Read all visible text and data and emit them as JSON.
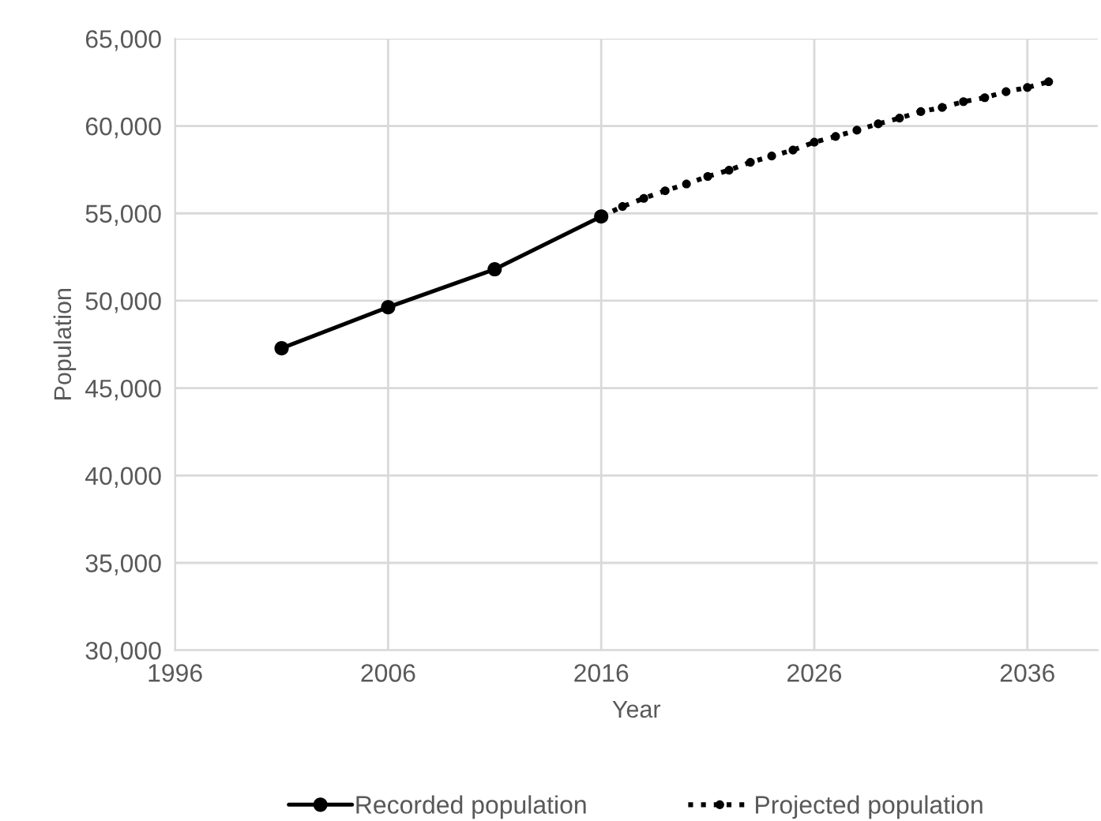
{
  "chart_data": {
    "type": "line",
    "xlabel": "Year",
    "ylabel": "Population",
    "xlim": [
      1996,
      2039.3
    ],
    "xticks": [
      1996,
      2006,
      2016,
      2026,
      2036
    ],
    "ylim": [
      30000,
      65000
    ],
    "yticks": [
      {
        "value": 30000,
        "label": "30,000"
      },
      {
        "value": 35000,
        "label": "35,000"
      },
      {
        "value": 40000,
        "label": "40,000"
      },
      {
        "value": 45000,
        "label": "45,000"
      },
      {
        "value": 50000,
        "label": "50,000"
      },
      {
        "value": 55000,
        "label": "55,000"
      },
      {
        "value": 60000,
        "label": "60,000"
      },
      {
        "value": 65000,
        "label": "65,000"
      }
    ],
    "grid": true,
    "legend": "bottom",
    "marker": "circle",
    "series": [
      {
        "name": "Recorded population",
        "color": "#000000",
        "line_style": "solid",
        "x": [
          2001,
          2006,
          2011,
          2016
        ],
        "values": [
          47280,
          49630,
          51800,
          54820
        ]
      },
      {
        "name": "Projected population",
        "color": "#000000",
        "line_style": "dotted",
        "x": [
          2016,
          2017,
          2018,
          2019,
          2020,
          2021,
          2022,
          2023,
          2024,
          2025,
          2026,
          2027,
          2028,
          2029,
          2030,
          2031,
          2032,
          2033,
          2034,
          2035,
          2036,
          2037
        ],
        "values": [
          54820,
          55390,
          55860,
          56290,
          56680,
          57110,
          57470,
          57920,
          58280,
          58620,
          59070,
          59400,
          59760,
          60120,
          60450,
          60820,
          61060,
          61390,
          61620,
          61960,
          62200,
          62530
        ]
      }
    ]
  }
}
